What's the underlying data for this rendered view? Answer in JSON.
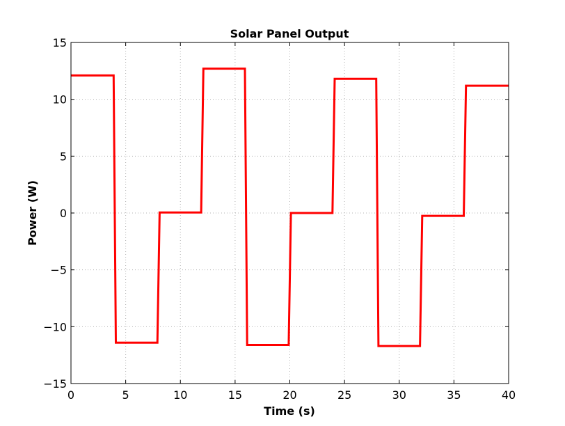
{
  "chart_data": {
    "type": "line",
    "title": "Solar Panel Output",
    "xlabel": "Time (s)",
    "ylabel": "Power (W)",
    "xlim": [
      0,
      40
    ],
    "ylim": [
      -15,
      15
    ],
    "xticks": [
      0,
      5,
      10,
      15,
      20,
      25,
      30,
      35,
      40
    ],
    "xtick_labels": [
      "0",
      "5",
      "10",
      "15",
      "20",
      "25",
      "30",
      "35",
      "40"
    ],
    "yticks": [
      -15,
      -10,
      -5,
      0,
      5,
      10,
      15
    ],
    "ytick_labels": [
      "−15",
      "−10",
      "−5",
      "0",
      "5",
      "10",
      "15"
    ],
    "grid": true,
    "series": [
      {
        "color": "#ff0000",
        "x": [
          0,
          3.9,
          4.1,
          7.9,
          8.1,
          11.9,
          12.1,
          15.9,
          16.1,
          19.9,
          20.1,
          23.9,
          24.1,
          27.9,
          28.1,
          31.9,
          32.1,
          35.9,
          36.1,
          40
        ],
        "y": [
          12.1,
          12.1,
          -11.4,
          -11.4,
          0.05,
          0.05,
          12.7,
          12.7,
          -11.6,
          -11.6,
          0.0,
          0.0,
          11.8,
          11.8,
          -11.7,
          -11.7,
          -0.25,
          -0.25,
          11.2,
          11.2
        ]
      }
    ]
  }
}
